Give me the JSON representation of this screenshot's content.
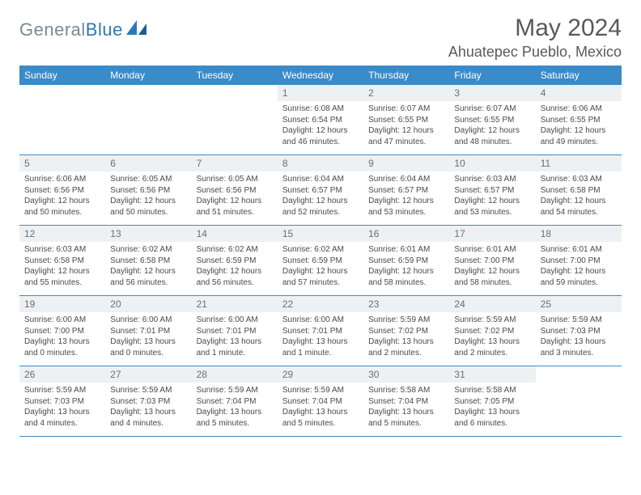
{
  "brand": {
    "part1": "General",
    "part2": "Blue"
  },
  "title": "May 2024",
  "location": "Ahuatepec Pueblo, Mexico",
  "colors": {
    "header_bg": "#3a8bc9",
    "header_text": "#ffffff",
    "daynum_bg": "#eef1f3",
    "daynum_text": "#6a6f73",
    "body_text": "#4a4a4a",
    "title_text": "#595959",
    "week_border": "#3a8bc9",
    "brand_gray": "#7a8a94",
    "brand_blue": "#2a7ab8"
  },
  "days_of_week": [
    "Sunday",
    "Monday",
    "Tuesday",
    "Wednesday",
    "Thursday",
    "Friday",
    "Saturday"
  ],
  "weeks": [
    [
      {
        "empty": true
      },
      {
        "empty": true
      },
      {
        "empty": true
      },
      {
        "n": "1",
        "sr": "Sunrise: 6:08 AM",
        "ss": "Sunset: 6:54 PM",
        "d1": "Daylight: 12 hours",
        "d2": "and 46 minutes."
      },
      {
        "n": "2",
        "sr": "Sunrise: 6:07 AM",
        "ss": "Sunset: 6:55 PM",
        "d1": "Daylight: 12 hours",
        "d2": "and 47 minutes."
      },
      {
        "n": "3",
        "sr": "Sunrise: 6:07 AM",
        "ss": "Sunset: 6:55 PM",
        "d1": "Daylight: 12 hours",
        "d2": "and 48 minutes."
      },
      {
        "n": "4",
        "sr": "Sunrise: 6:06 AM",
        "ss": "Sunset: 6:55 PM",
        "d1": "Daylight: 12 hours",
        "d2": "and 49 minutes."
      }
    ],
    [
      {
        "n": "5",
        "sr": "Sunrise: 6:06 AM",
        "ss": "Sunset: 6:56 PM",
        "d1": "Daylight: 12 hours",
        "d2": "and 50 minutes."
      },
      {
        "n": "6",
        "sr": "Sunrise: 6:05 AM",
        "ss": "Sunset: 6:56 PM",
        "d1": "Daylight: 12 hours",
        "d2": "and 50 minutes."
      },
      {
        "n": "7",
        "sr": "Sunrise: 6:05 AM",
        "ss": "Sunset: 6:56 PM",
        "d1": "Daylight: 12 hours",
        "d2": "and 51 minutes."
      },
      {
        "n": "8",
        "sr": "Sunrise: 6:04 AM",
        "ss": "Sunset: 6:57 PM",
        "d1": "Daylight: 12 hours",
        "d2": "and 52 minutes."
      },
      {
        "n": "9",
        "sr": "Sunrise: 6:04 AM",
        "ss": "Sunset: 6:57 PM",
        "d1": "Daylight: 12 hours",
        "d2": "and 53 minutes."
      },
      {
        "n": "10",
        "sr": "Sunrise: 6:03 AM",
        "ss": "Sunset: 6:57 PM",
        "d1": "Daylight: 12 hours",
        "d2": "and 53 minutes."
      },
      {
        "n": "11",
        "sr": "Sunrise: 6:03 AM",
        "ss": "Sunset: 6:58 PM",
        "d1": "Daylight: 12 hours",
        "d2": "and 54 minutes."
      }
    ],
    [
      {
        "n": "12",
        "sr": "Sunrise: 6:03 AM",
        "ss": "Sunset: 6:58 PM",
        "d1": "Daylight: 12 hours",
        "d2": "and 55 minutes."
      },
      {
        "n": "13",
        "sr": "Sunrise: 6:02 AM",
        "ss": "Sunset: 6:58 PM",
        "d1": "Daylight: 12 hours",
        "d2": "and 56 minutes."
      },
      {
        "n": "14",
        "sr": "Sunrise: 6:02 AM",
        "ss": "Sunset: 6:59 PM",
        "d1": "Daylight: 12 hours",
        "d2": "and 56 minutes."
      },
      {
        "n": "15",
        "sr": "Sunrise: 6:02 AM",
        "ss": "Sunset: 6:59 PM",
        "d1": "Daylight: 12 hours",
        "d2": "and 57 minutes."
      },
      {
        "n": "16",
        "sr": "Sunrise: 6:01 AM",
        "ss": "Sunset: 6:59 PM",
        "d1": "Daylight: 12 hours",
        "d2": "and 58 minutes."
      },
      {
        "n": "17",
        "sr": "Sunrise: 6:01 AM",
        "ss": "Sunset: 7:00 PM",
        "d1": "Daylight: 12 hours",
        "d2": "and 58 minutes."
      },
      {
        "n": "18",
        "sr": "Sunrise: 6:01 AM",
        "ss": "Sunset: 7:00 PM",
        "d1": "Daylight: 12 hours",
        "d2": "and 59 minutes."
      }
    ],
    [
      {
        "n": "19",
        "sr": "Sunrise: 6:00 AM",
        "ss": "Sunset: 7:00 PM",
        "d1": "Daylight: 13 hours",
        "d2": "and 0 minutes."
      },
      {
        "n": "20",
        "sr": "Sunrise: 6:00 AM",
        "ss": "Sunset: 7:01 PM",
        "d1": "Daylight: 13 hours",
        "d2": "and 0 minutes."
      },
      {
        "n": "21",
        "sr": "Sunrise: 6:00 AM",
        "ss": "Sunset: 7:01 PM",
        "d1": "Daylight: 13 hours",
        "d2": "and 1 minute."
      },
      {
        "n": "22",
        "sr": "Sunrise: 6:00 AM",
        "ss": "Sunset: 7:01 PM",
        "d1": "Daylight: 13 hours",
        "d2": "and 1 minute."
      },
      {
        "n": "23",
        "sr": "Sunrise: 5:59 AM",
        "ss": "Sunset: 7:02 PM",
        "d1": "Daylight: 13 hours",
        "d2": "and 2 minutes."
      },
      {
        "n": "24",
        "sr": "Sunrise: 5:59 AM",
        "ss": "Sunset: 7:02 PM",
        "d1": "Daylight: 13 hours",
        "d2": "and 2 minutes."
      },
      {
        "n": "25",
        "sr": "Sunrise: 5:59 AM",
        "ss": "Sunset: 7:03 PM",
        "d1": "Daylight: 13 hours",
        "d2": "and 3 minutes."
      }
    ],
    [
      {
        "n": "26",
        "sr": "Sunrise: 5:59 AM",
        "ss": "Sunset: 7:03 PM",
        "d1": "Daylight: 13 hours",
        "d2": "and 4 minutes."
      },
      {
        "n": "27",
        "sr": "Sunrise: 5:59 AM",
        "ss": "Sunset: 7:03 PM",
        "d1": "Daylight: 13 hours",
        "d2": "and 4 minutes."
      },
      {
        "n": "28",
        "sr": "Sunrise: 5:59 AM",
        "ss": "Sunset: 7:04 PM",
        "d1": "Daylight: 13 hours",
        "d2": "and 5 minutes."
      },
      {
        "n": "29",
        "sr": "Sunrise: 5:59 AM",
        "ss": "Sunset: 7:04 PM",
        "d1": "Daylight: 13 hours",
        "d2": "and 5 minutes."
      },
      {
        "n": "30",
        "sr": "Sunrise: 5:58 AM",
        "ss": "Sunset: 7:04 PM",
        "d1": "Daylight: 13 hours",
        "d2": "and 5 minutes."
      },
      {
        "n": "31",
        "sr": "Sunrise: 5:58 AM",
        "ss": "Sunset: 7:05 PM",
        "d1": "Daylight: 13 hours",
        "d2": "and 6 minutes."
      },
      {
        "empty": true
      }
    ]
  ]
}
